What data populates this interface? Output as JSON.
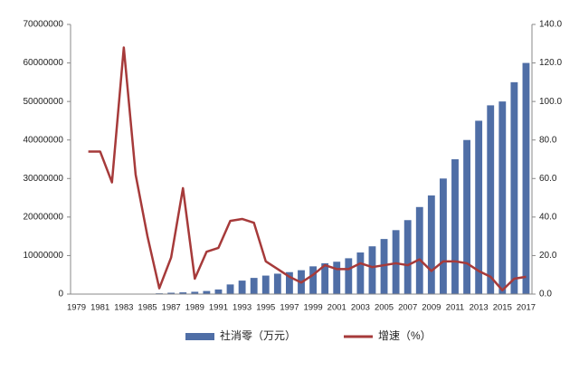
{
  "chart_data": {
    "type": "bar_line",
    "categories": [
      "1979",
      null,
      "1981",
      null,
      "1983",
      null,
      "1985",
      null,
      "1987",
      null,
      "1989",
      null,
      "1991",
      null,
      "1993",
      null,
      "1995",
      null,
      "1997",
      null,
      "1999",
      null,
      "2001",
      null,
      "2003",
      null,
      "2005",
      null,
      "2007",
      null,
      "2009",
      null,
      "2011",
      null,
      "2013",
      null,
      "2015",
      null,
      "2017"
    ],
    "series": [
      {
        "name": "社消零（万元）",
        "type": "bar",
        "color": "#4f6ea6",
        "values": [
          10000,
          15000,
          20000,
          25000,
          30000,
          50000,
          100000,
          200000,
          350000,
          450000,
          600000,
          800000,
          1200000,
          2500000,
          3500000,
          4200000,
          4800000,
          5300000,
          5700000,
          6200000,
          7200000,
          8000000,
          8400000,
          9300000,
          10800000,
          12400000,
          14300000,
          16600000,
          19200000,
          22600000,
          25600000,
          30000000,
          35000000,
          40000000,
          45000000,
          49000000,
          50000000,
          55000000,
          60000000
        ]
      },
      {
        "name": "增速（%）",
        "type": "line",
        "axis": "y2",
        "color": "#a63a3a",
        "values": [
          null,
          74,
          74,
          58,
          128,
          62,
          30,
          3,
          19,
          55,
          8,
          22,
          24,
          38,
          39,
          37,
          17,
          13,
          9,
          6,
          10,
          15,
          13,
          13,
          16,
          14,
          15,
          16,
          15,
          18,
          12,
          17,
          17,
          16,
          12,
          9,
          2,
          8,
          9
        ]
      }
    ],
    "ylim": [
      0,
      70000000
    ],
    "yticks": [
      0,
      10000000,
      20000000,
      30000000,
      40000000,
      50000000,
      60000000,
      70000000
    ],
    "y2lim": [
      0,
      140
    ],
    "y2ticks": [
      {
        "value": 0,
        "label": "0.0"
      },
      {
        "value": 20,
        "label": "20.0"
      },
      {
        "value": 40,
        "label": "40.0"
      },
      {
        "value": 60,
        "label": "60.0"
      },
      {
        "value": 80,
        "label": "80.0"
      },
      {
        "value": 100,
        "label": "100.0"
      },
      {
        "value": 120,
        "label": "120.0"
      },
      {
        "value": 140,
        "label": "140.0"
      }
    ],
    "legend": "bottom"
  }
}
